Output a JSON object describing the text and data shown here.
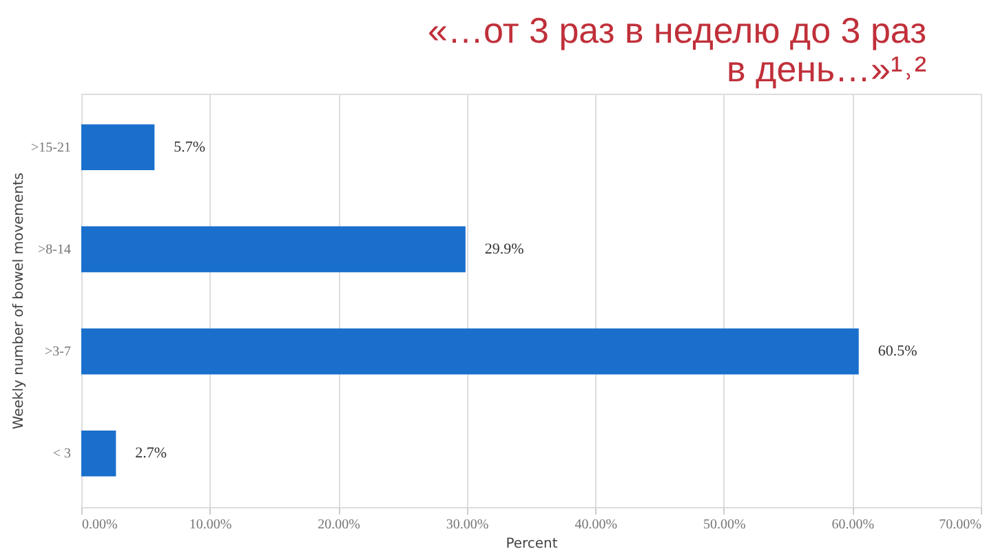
{
  "chart_data": {
    "type": "bar",
    "orientation": "horizontal",
    "title": "«…от 3 раз в неделю до 3 раз\nв день…»¹˒²",
    "categories": [
      ">15-21",
      ">8-14",
      ">3-7",
      "< 3"
    ],
    "values": [
      5.7,
      29.9,
      60.5,
      2.7
    ],
    "value_labels": [
      "5.7%",
      "29.9%",
      "60.5%",
      "2.7%"
    ],
    "color": "#1a6fcc",
    "xlim": [
      0,
      70
    ],
    "xticks": [
      {
        "value": 0,
        "label": "0.00%"
      },
      {
        "value": 10,
        "label": "10.00%"
      },
      {
        "value": 20,
        "label": "20.00%"
      },
      {
        "value": 30,
        "label": "30.00%"
      },
      {
        "value": 40,
        "label": "40.00%"
      },
      {
        "value": 50,
        "label": "50.00%"
      },
      {
        "value": 60,
        "label": "60.00%"
      },
      {
        "value": 70,
        "label": "70.00%"
      }
    ],
    "xlabel": "Percent",
    "ylabel": "Weekly number of bowel movements",
    "grid": "x"
  }
}
